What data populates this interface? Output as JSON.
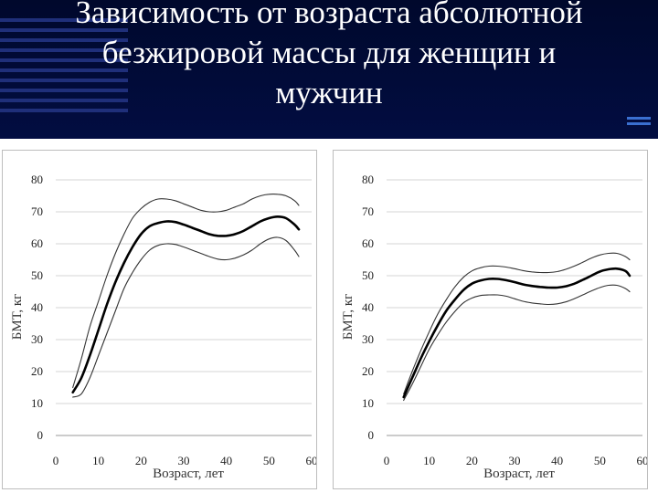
{
  "slide": {
    "title_lines": [
      "Зависимость от возраста абсолютной",
      "безжировой массы для женщин и",
      "мужчин"
    ]
  },
  "chart_data": [
    {
      "type": "line",
      "xlabel": "Возраст, лет",
      "ylabel": "БМТ, кг",
      "xlim": [
        0,
        60
      ],
      "ylim": [
        0,
        80
      ],
      "xticks": [
        0,
        10,
        20,
        30,
        40,
        50,
        60
      ],
      "yticks": [
        0,
        10,
        20,
        30,
        40,
        50,
        60,
        70,
        80
      ],
      "grid": "horizontal",
      "series": [
        {
          "role": "upper",
          "x": [
            4,
            6,
            8,
            10,
            12,
            14,
            16,
            18,
            20,
            22,
            24,
            26,
            28,
            30,
            32,
            34,
            36,
            38,
            40,
            42,
            44,
            46,
            48,
            50,
            52,
            54,
            56,
            57
          ],
          "y": [
            15,
            24,
            34,
            42,
            50,
            57,
            63,
            68,
            71,
            73,
            74,
            74,
            73.5,
            72.5,
            71.5,
            70.5,
            70,
            70,
            70.5,
            71.5,
            72.5,
            74,
            75,
            75.5,
            75.5,
            75,
            73.5,
            72
          ]
        },
        {
          "role": "mean",
          "x": [
            4,
            6,
            8,
            10,
            12,
            14,
            16,
            18,
            20,
            22,
            24,
            26,
            28,
            30,
            32,
            34,
            36,
            38,
            40,
            42,
            44,
            46,
            48,
            50,
            52,
            54,
            56,
            57
          ],
          "y": [
            13.5,
            18,
            25,
            33,
            41,
            48,
            54,
            59,
            63,
            65.5,
            66.5,
            67,
            66.8,
            66,
            65,
            64,
            63,
            62.5,
            62.5,
            63,
            64,
            65.5,
            67,
            68,
            68.5,
            68,
            66,
            64.5
          ]
        },
        {
          "role": "lower",
          "x": [
            4,
            6,
            8,
            10,
            12,
            14,
            16,
            18,
            20,
            22,
            24,
            26,
            28,
            30,
            32,
            34,
            36,
            38,
            40,
            42,
            44,
            46,
            48,
            50,
            52,
            54,
            56,
            57
          ],
          "y": [
            12,
            13,
            18,
            25,
            32,
            39,
            46,
            51,
            55,
            58,
            59.5,
            60,
            59.8,
            59,
            58,
            57,
            56,
            55.2,
            55,
            55.5,
            56.5,
            58,
            60,
            61.5,
            62,
            61,
            58,
            56
          ]
        }
      ]
    },
    {
      "type": "line",
      "xlabel": "Возраст, лет",
      "ylabel": "БМТ, кг",
      "xlim": [
        0,
        60
      ],
      "ylim": [
        0,
        80
      ],
      "xticks": [
        0,
        10,
        20,
        30,
        40,
        50,
        60
      ],
      "yticks": [
        0,
        10,
        20,
        30,
        40,
        50,
        60,
        70,
        80
      ],
      "grid": "horizontal",
      "series": [
        {
          "role": "upper",
          "x": [
            4,
            6,
            8,
            10,
            12,
            14,
            16,
            18,
            20,
            22,
            24,
            26,
            28,
            30,
            32,
            34,
            36,
            38,
            40,
            42,
            44,
            46,
            48,
            50,
            52,
            54,
            56,
            57
          ],
          "y": [
            13,
            20,
            26.5,
            32.5,
            38,
            42.5,
            46.5,
            49.5,
            51.5,
            52.5,
            53,
            53,
            52.7,
            52.2,
            51.6,
            51.2,
            51,
            51,
            51.3,
            52,
            53,
            54.2,
            55.5,
            56.5,
            57,
            57,
            56,
            55
          ]
        },
        {
          "role": "mean",
          "x": [
            4,
            6,
            8,
            10,
            12,
            14,
            16,
            18,
            20,
            22,
            24,
            26,
            28,
            30,
            32,
            34,
            36,
            38,
            40,
            42,
            44,
            46,
            48,
            50,
            52,
            54,
            56,
            57
          ],
          "y": [
            12,
            18,
            24,
            29.5,
            34.5,
            39,
            42.5,
            45.5,
            47.5,
            48.5,
            49,
            49,
            48.6,
            48,
            47.3,
            46.8,
            46.5,
            46.3,
            46.3,
            46.7,
            47.5,
            48.7,
            50,
            51.3,
            52,
            52.2,
            51.5,
            50
          ]
        },
        {
          "role": "lower",
          "x": [
            4,
            6,
            8,
            10,
            12,
            14,
            16,
            18,
            20,
            22,
            24,
            26,
            28,
            30,
            32,
            34,
            36,
            38,
            40,
            42,
            44,
            46,
            48,
            50,
            52,
            54,
            56,
            57
          ],
          "y": [
            11,
            16,
            21.5,
            27,
            31.5,
            35.5,
            38.8,
            41.5,
            43,
            43.8,
            44,
            44,
            43.6,
            42.8,
            42,
            41.5,
            41.2,
            41,
            41.2,
            41.8,
            42.8,
            44,
            45.2,
            46.3,
            47,
            47,
            46,
            45
          ]
        }
      ]
    }
  ]
}
